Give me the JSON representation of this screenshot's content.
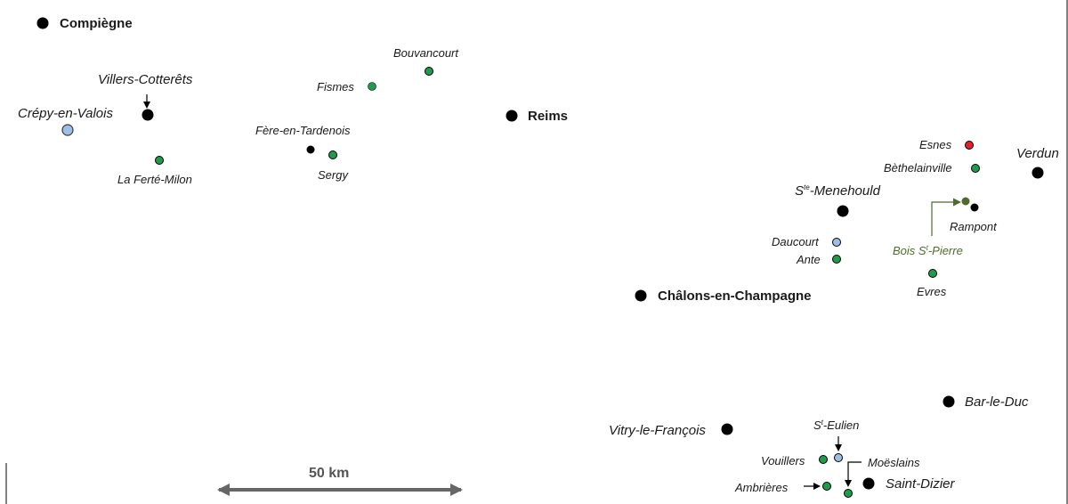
{
  "colors": {
    "major_city": "#000000",
    "site_green": "#1e9b4b",
    "site_blue": "#9dbfe6",
    "site_red": "#e5202a",
    "site_olive": "#4e6b2c",
    "scale_bar": "#666666"
  },
  "places": {
    "compiegne": "Compiègne",
    "reims": "Reims",
    "chalons": "Châlons-en-Champagne",
    "villers": "Villers-Cotterêts",
    "crepy": "Crépy-en-Valois",
    "laferte": "La Ferté-Milon",
    "fismes": "Fismes",
    "bouvancourt": "Bouvancourt",
    "fere": "Fère-en-Tardenois",
    "sergy": "Sergy",
    "esnes": "Esnes",
    "verdun": "Verdun",
    "bethelainville": "Bèthelainville",
    "ste_menehould_prefix": "S",
    "ste_menehould_sup": "te",
    "ste_menehould_suffix": "-Menehould",
    "rampont": "Rampont",
    "daucourt": "Daucourt",
    "ante": "Ante",
    "bois_prefix": "Bois S",
    "bois_sup": "t",
    "bois_suffix": "-Pierre",
    "evres": "Evres",
    "barleduc": "Bar-le-Duc",
    "vitry": "Vitry-le-François",
    "st_eulien_prefix": "S",
    "st_eulien_sup": "t",
    "st_eulien_suffix": "-Eulien",
    "vouillers": "Vouillers",
    "moeslains": "Moëslains",
    "ambrieres": "Ambrières",
    "saint_dizier": "Saint-Dizier"
  },
  "scale": {
    "label": "50 km"
  }
}
